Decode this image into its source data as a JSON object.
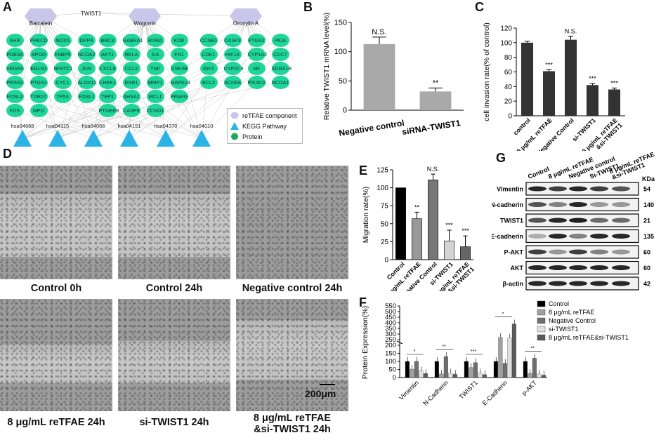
{
  "panel_labels": {
    "a": "A",
    "b": "B",
    "c": "C",
    "d": "D",
    "e": "E",
    "f": "F",
    "g": "G"
  },
  "network": {
    "compounds": [
      "Baicalein",
      "Wogonin",
      "Oroxylin A"
    ],
    "target": "TWIST1",
    "proteins": [
      "AHR",
      "PRKCD",
      "NOX5",
      "DPP4",
      "PDE3A",
      "APOD",
      "FABP5",
      "NCOA2",
      "VEGFA",
      "EGLN1",
      "NFATC1",
      "JUN",
      "PRSS1",
      "PTGS1",
      "CYC1",
      "ALOX12",
      "FOSL2",
      "TDRD7",
      "TP53",
      "FOSL1",
      "FOS",
      "MPO",
      "BBC3",
      "GABRA1",
      "RXRA",
      "KDR",
      "AKT1",
      "RELA",
      "IL6",
      "FN1",
      "CXCL8",
      "CCL2",
      "TNF",
      "GSK3B",
      "CHEK1",
      "ESR1",
      "MMP1",
      "MAPK14",
      "TEP1",
      "AHSA1",
      "MCL1",
      "PPARG",
      "PTGER3",
      "CASP9",
      "CCND1",
      "CCNB1",
      "CASP3",
      "PTGS2",
      "PKIA",
      "CDK1",
      "HIF1A",
      "CYP1A2",
      "CDC7",
      "IGF2",
      "CYP2C9",
      "AR",
      "ADRA1B",
      "BCL2",
      "SCN5A",
      "PIK3CG",
      "NCOA1"
    ],
    "pathways": [
      "hsa04668",
      "hsa04115",
      "hsa04066",
      "hsa04151",
      "hsa04370",
      "hsa04010"
    ],
    "legend": [
      {
        "label": "reTFAE component",
        "shape": "hexagon",
        "color": "#c9c6ea"
      },
      {
        "label": "KEGG Pathway",
        "shape": "triangle",
        "color": "#2bb3e6"
      },
      {
        "label": "Protein",
        "shape": "circle",
        "color": "#1ea860"
      }
    ]
  },
  "chart_data": [
    {
      "panel": "B",
      "type": "bar",
      "categories": [
        "Negative control",
        "siRNA-TWIST1"
      ],
      "values": [
        113,
        32
      ],
      "errors": [
        12,
        6
      ],
      "annotations": [
        "N.S.",
        "**"
      ],
      "ylabel": "Relative TWIST1 mRNA level(%)",
      "ylim": [
        0,
        150
      ],
      "yticks": [
        0,
        50,
        100,
        150
      ],
      "colors": [
        "#a9a9a9",
        "#a9a9a9"
      ]
    },
    {
      "panel": "C",
      "type": "bar",
      "categories": [
        "control",
        "8 μg/mL reTFAE",
        "Negative Control",
        "si-TWIST1",
        "8 μg/mL reTFAE &si-TWIST1"
      ],
      "values": [
        100,
        61,
        104,
        42,
        36
      ],
      "errors": [
        2,
        2,
        5,
        2,
        2
      ],
      "annotations": [
        "",
        "***",
        "N.S.",
        "***",
        "***"
      ],
      "ylabel": "cell invasion rate(% of control)",
      "ylim": [
        0,
        120
      ],
      "yticks": [
        0,
        20,
        40,
        60,
        80,
        100,
        120
      ],
      "colors": [
        "#333333",
        "#333333",
        "#333333",
        "#333333",
        "#333333"
      ]
    },
    {
      "panel": "E",
      "type": "bar",
      "categories": [
        "Control",
        "8 μg/mL reTFAE",
        "Negative Control",
        "si-TWIST1",
        "8 μg/mL reTFAE &si-TWIST1"
      ],
      "values": [
        100,
        57,
        111,
        26,
        18
      ],
      "errors": [
        0,
        9,
        8,
        15,
        15
      ],
      "annotations": [
        "",
        "**",
        "N.S.",
        "***",
        "***"
      ],
      "ylabel": "Migration rate(%)",
      "ylim": [
        0,
        125
      ],
      "yticks": [
        "0",
        "25",
        "50",
        "75",
        "100",
        "125"
      ],
      "colors": [
        "#000000",
        "#999999",
        "#777777",
        "#d3d3d3",
        "#666666"
      ]
    },
    {
      "panel": "F",
      "type": "bar",
      "categories": [
        "Vimentin",
        "N-Cadherin",
        "TWIST1",
        "E-Cadherin",
        "p-AKT"
      ],
      "series": [
        {
          "name": "Control",
          "color": "#000000",
          "values": [
            100,
            100,
            100,
            100,
            100
          ]
        },
        {
          "name": "8 μg/mL reTFAE",
          "color": "#a0a0a0",
          "values": [
            52,
            22,
            62,
            270,
            25
          ]
        },
        {
          "name": "Negative Control",
          "color": "#6e6e6e",
          "values": [
            100,
            130,
            92,
            88,
            120
          ]
        },
        {
          "name": "si-TWIST1",
          "color": "#e0e0e0",
          "values": [
            42,
            28,
            28,
            265,
            22
          ]
        },
        {
          "name": "8 μg/mL reTFAE&si-TWIST1",
          "color": "#5a5a5a",
          "values": [
            25,
            20,
            18,
            390,
            15
          ]
        }
      ],
      "ylabel": "Protein Expression(%)",
      "yticks": [
        "0",
        "50",
        "100",
        "150",
        "200",
        "250",
        "300",
        "350",
        "400",
        "450",
        "500",
        "550"
      ],
      "annotations": [
        "*",
        "**",
        "***"
      ]
    }
  ],
  "western_blot": {
    "lanes": [
      "Control",
      "8 μg/mL reTFAE",
      "Negative control",
      "Si-TWIST1",
      "8 μg/mL reTFAE &si-TWIST1"
    ],
    "kda_header": "KDa",
    "bands": [
      {
        "protein": "Vimentin",
        "kda": "54"
      },
      {
        "protein": "N-cadherin",
        "kda": "140"
      },
      {
        "protein": "TWIST1",
        "kda": "21"
      },
      {
        "protein": "E-cadherin",
        "kda": "135"
      },
      {
        "protein": "P-AKT",
        "kda": "60"
      },
      {
        "protein": "AKT",
        "kda": "60"
      },
      {
        "protein": "β-actin",
        "kda": "42"
      }
    ]
  },
  "micrographs": {
    "captions": [
      "Control 0h",
      "Control 24h",
      "Negative control 24h",
      "8 μg/mL reTFAE 24h",
      "si-TWIST1 24h",
      "8 μg/mL reTFAE &si-TWIST1 24h"
    ],
    "scale_bar": "200μm"
  }
}
